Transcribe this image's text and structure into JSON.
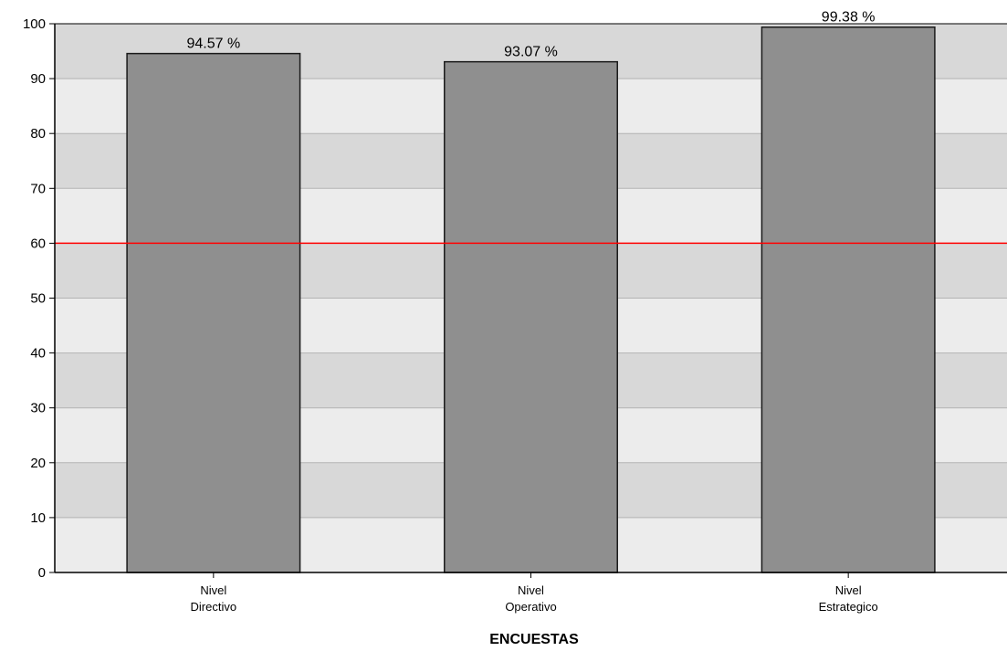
{
  "chart_data": {
    "type": "bar",
    "categories": [
      [
        "Nivel",
        "Directivo"
      ],
      [
        "Nivel",
        "Operativo"
      ],
      [
        "Nivel",
        "Estrategico"
      ]
    ],
    "values": [
      94.57,
      93.07,
      99.38
    ],
    "data_labels": [
      "94.57 %",
      "93.07 %",
      "99.38 %"
    ],
    "xlabel": "ENCUESTAS",
    "ylabel": "",
    "ylim": [
      0,
      100
    ],
    "yticks": [
      0,
      10,
      20,
      30,
      40,
      50,
      60,
      70,
      80,
      90,
      100
    ],
    "reference_line": 60,
    "grid": true,
    "colors": {
      "bar_fill": "#8f8f8f",
      "bar_stroke": "#1a1a1a",
      "band_dark": "#d8d8d8",
      "band_light": "#ececec",
      "grid_line": "#b3b3b3",
      "reference_line": "#ff0000",
      "axis": "#000000"
    }
  }
}
